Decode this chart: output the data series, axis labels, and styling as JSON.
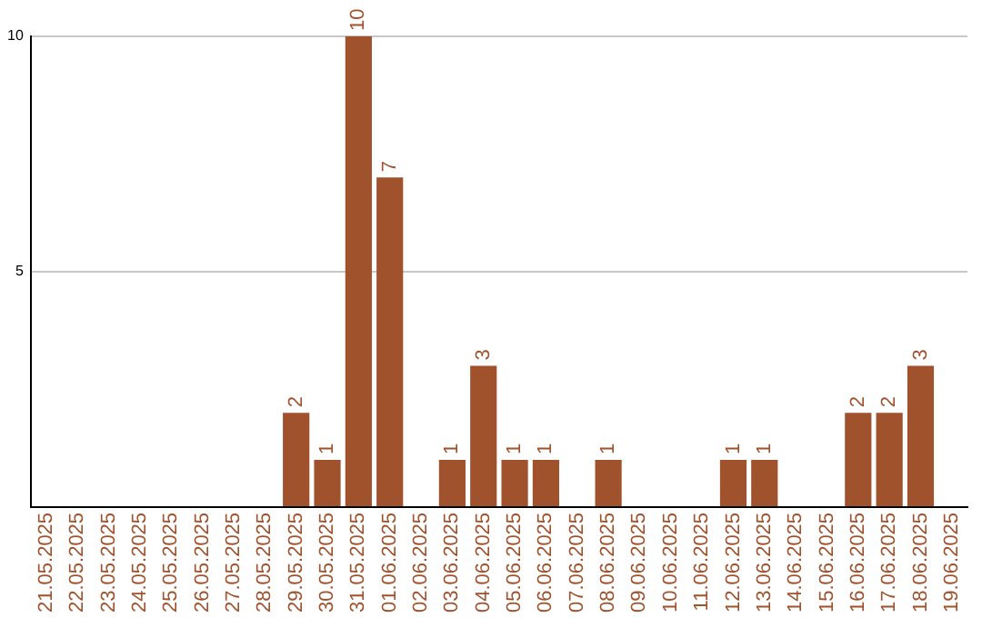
{
  "chart_data": {
    "type": "bar",
    "categories": [
      "21.05.2025",
      "22.05.2025",
      "23.05.2025",
      "24.05.2025",
      "25.05.2025",
      "26.05.2025",
      "27.05.2025",
      "28.05.2025",
      "29.05.2025",
      "30.05.2025",
      "31.05.2025",
      "01.06.2025",
      "02.06.2025",
      "03.06.2025",
      "04.06.2025",
      "05.06.2025",
      "06.06.2025",
      "07.06.2025",
      "08.06.2025",
      "09.06.2025",
      "10.06.2025",
      "11.06.2025",
      "12.06.2025",
      "13.06.2025",
      "14.06.2025",
      "15.06.2025",
      "16.06.2025",
      "17.06.2025",
      "18.06.2025",
      "19.06.2025"
    ],
    "values": [
      null,
      null,
      null,
      null,
      null,
      null,
      null,
      null,
      2,
      1,
      10,
      7,
      null,
      1,
      3,
      1,
      1,
      null,
      1,
      null,
      null,
      null,
      1,
      1,
      null,
      null,
      2,
      2,
      3,
      null
    ],
    "color": "#a0522d",
    "ylim": [
      0,
      10
    ],
    "yticks": [
      {
        "value": 0,
        "label": null
      },
      5,
      10
    ],
    "grid": "y",
    "data_labels": true,
    "legend": false
  }
}
